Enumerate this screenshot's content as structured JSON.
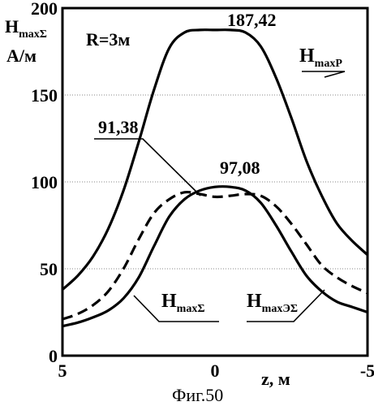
{
  "chart_data": {
    "type": "line",
    "caption": "Фиг.50",
    "ylabel": {
      "main": "H",
      "sub": "maxΣ",
      "unit": "А/м"
    },
    "xlabel": "z, м",
    "annotation": "R=3м",
    "xlim": [
      5,
      -5
    ],
    "ylim": [
      0,
      200
    ],
    "xticks": [
      5,
      0,
      -5
    ],
    "yticks": [
      0,
      50,
      100,
      150,
      200
    ],
    "grid": "horizontal-dotted",
    "series": [
      {
        "name": "H_maxP",
        "label_main": "H",
        "label_sub": "maxP",
        "style": "solid",
        "peak_label": "187,42",
        "x": [
          5,
          4.5,
          4,
          3.5,
          3,
          2.5,
          2,
          1.5,
          1,
          0.5,
          0,
          -0.5,
          -1,
          -1.5,
          -2,
          -2.5,
          -3,
          -3.5,
          -4,
          -4.5,
          -5
        ],
        "y": [
          38,
          46,
          57,
          73,
          95,
          123,
          153,
          177,
          186,
          187.42,
          187.42,
          187.42,
          186,
          178,
          160,
          137,
          112,
          92,
          76,
          66,
          58
        ]
      },
      {
        "name": "H_maxΣ",
        "label_main": "H",
        "label_sub": "maxΣ",
        "style": "solid",
        "peak_label": "97,08",
        "x": [
          5,
          4.5,
          4,
          3.5,
          3,
          2.5,
          2,
          1.5,
          1,
          0.5,
          0,
          -0.5,
          -1,
          -1.5,
          -2,
          -2.5,
          -3,
          -3.5,
          -4,
          -4.5,
          -5
        ],
        "y": [
          17,
          19,
          22,
          26,
          33,
          45,
          63,
          80,
          90,
          95,
          97.08,
          97.08,
          95,
          88,
          75,
          60,
          46,
          37,
          31,
          28,
          25
        ]
      },
      {
        "name": "H_maxЭΣ",
        "label_main": "H",
        "label_sub": "maxЭΣ",
        "style": "dashed",
        "peak_label": "91,38",
        "x": [
          5,
          4.5,
          4,
          3.5,
          3,
          2.5,
          2,
          1.5,
          1,
          0.5,
          0,
          -0.5,
          -1,
          -1.5,
          -2,
          -2.5,
          -3,
          -3.5,
          -4,
          -4.5,
          -5
        ],
        "y": [
          21,
          24,
          29,
          37,
          50,
          67,
          82,
          90,
          94,
          93,
          91.38,
          92,
          93,
          92,
          86,
          76,
          64,
          52,
          45,
          40,
          36
        ]
      }
    ]
  }
}
